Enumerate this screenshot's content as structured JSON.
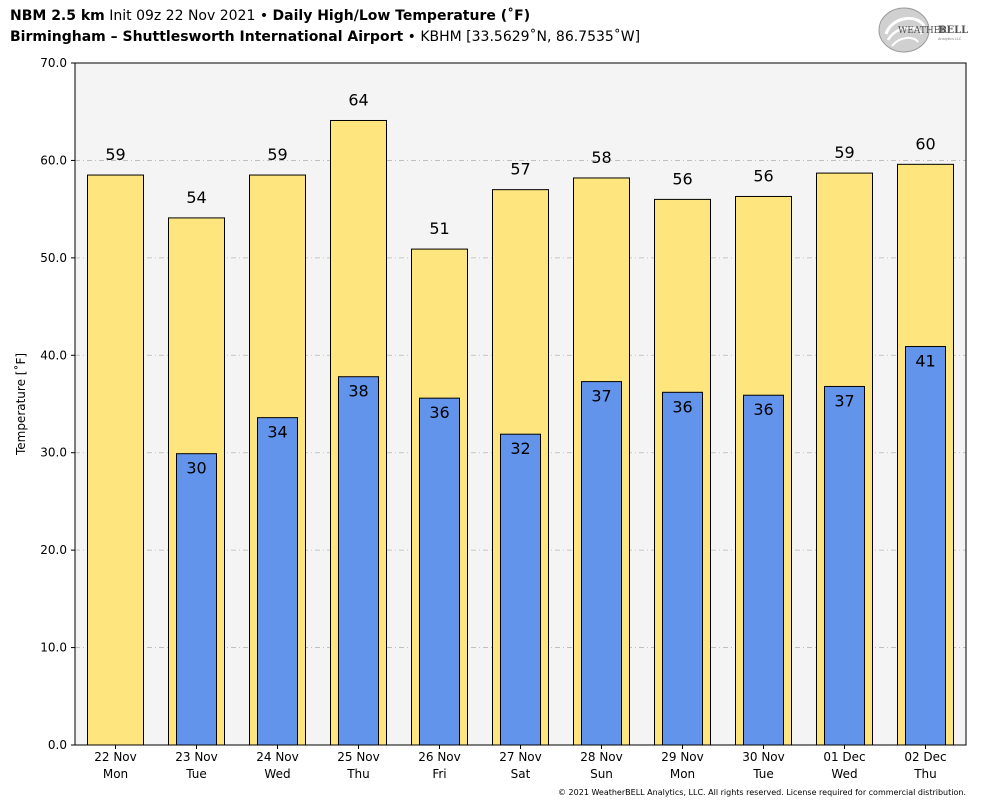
{
  "header": {
    "line1_model": "NBM 2.5 km",
    "line1_init": "Init 09z 22 Nov 2021",
    "line1_sep": "•",
    "line1_title": "Daily High/Low Temperature (˚F)",
    "line2_station": "Birmingham – Shuttlesworth International Airport",
    "line2_sep": "•",
    "line2_coords": "KBHM [33.5629˚N, 86.7535˚W]"
  },
  "logo": {
    "text_weather": "WEATHER",
    "text_bell": "BELL",
    "text_sub": "Analytics LLC",
    "icon": "swirl-logo-icon"
  },
  "copyright": "© 2021 WeatherBELL Analytics, LLC. All rights reserved. License required for commercial distribution.",
  "chart_data": {
    "type": "bar",
    "ylabel": "Temperature [˚F]",
    "ylim": [
      0,
      70
    ],
    "yticks": [
      "0.0",
      "10.0",
      "20.0",
      "30.0",
      "40.0",
      "50.0",
      "60.0",
      "70.0"
    ],
    "grid": true,
    "categories": [
      {
        "date": "22 Nov",
        "day": "Mon"
      },
      {
        "date": "23 Nov",
        "day": "Tue"
      },
      {
        "date": "24 Nov",
        "day": "Wed"
      },
      {
        "date": "25 Nov",
        "day": "Thu"
      },
      {
        "date": "26 Nov",
        "day": "Fri"
      },
      {
        "date": "27 Nov",
        "day": "Sat"
      },
      {
        "date": "28 Nov",
        "day": "Sun"
      },
      {
        "date": "29 Nov",
        "day": "Mon"
      },
      {
        "date": "30 Nov",
        "day": "Tue"
      },
      {
        "date": "01 Dec",
        "day": "Wed"
      },
      {
        "date": "02 Dec",
        "day": "Thu"
      }
    ],
    "series": [
      {
        "key": "high",
        "color": "#fee57d",
        "values": [
          58.5,
          54.1,
          58.5,
          64.1,
          50.9,
          57.0,
          58.2,
          56.0,
          56.3,
          58.7,
          59.6
        ],
        "labels": [
          "59",
          "54",
          "59",
          "64",
          "51",
          "57",
          "58",
          "56",
          "56",
          "59",
          "60"
        ]
      },
      {
        "key": "low",
        "color": "#6394ec",
        "values": [
          null,
          29.9,
          33.6,
          37.8,
          35.6,
          31.9,
          37.3,
          36.2,
          35.9,
          36.8,
          40.9
        ],
        "labels": [
          "",
          "30",
          "34",
          "38",
          "36",
          "32",
          "37",
          "36",
          "36",
          "37",
          "41"
        ]
      }
    ],
    "colors": {
      "plot_bg": "#f4f4f4",
      "grid": "#b8b8b8"
    }
  }
}
